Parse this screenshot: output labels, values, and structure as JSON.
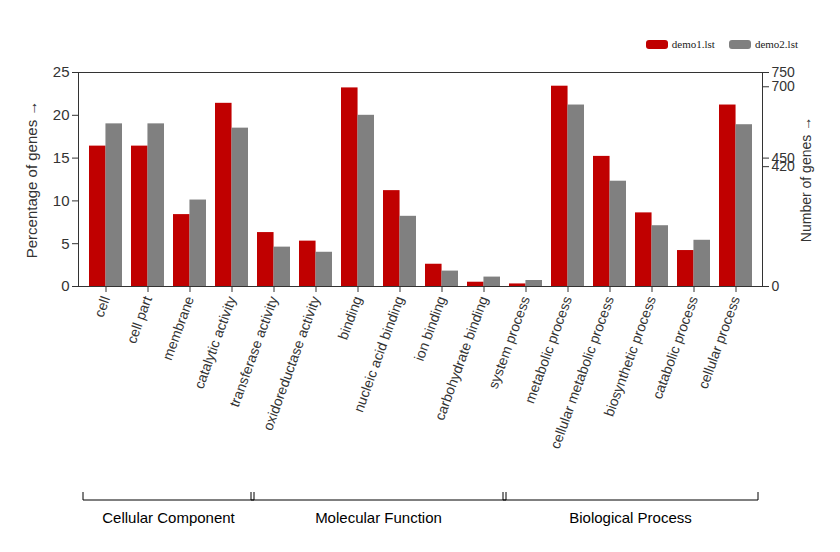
{
  "chart_data": {
    "type": "bar",
    "categories": [
      "cell",
      "cell part",
      "membrane",
      "catalytic activity",
      "transferase activity",
      "oxidoreductase activity",
      "binding",
      "nucleic acid binding",
      "ion binding",
      "carbohydrate binding",
      "system process",
      "metabolic process",
      "cellular metabolic process",
      "biosynthetic process",
      "catabolic process",
      "cellular process"
    ],
    "series": [
      {
        "name": "demo1.lst",
        "color": "#c00000",
        "values": [
          16.4,
          16.4,
          8.4,
          21.4,
          6.3,
          5.3,
          23.2,
          11.2,
          2.6,
          0.5,
          0.3,
          23.4,
          15.2,
          8.6,
          4.2,
          21.2
        ]
      },
      {
        "name": "demo2.lst",
        "color": "#808080",
        "values": [
          19.0,
          19.0,
          10.1,
          18.5,
          4.6,
          4.0,
          20.0,
          8.2,
          1.8,
          1.1,
          0.7,
          21.2,
          12.3,
          7.1,
          5.4,
          18.9
        ]
      }
    ],
    "ylabel": "Percentage of genes",
    "y2label": "Number of genes",
    "ylim": [
      0,
      25
    ],
    "yticks": [
      0,
      5,
      10,
      15,
      20,
      25
    ],
    "y2lim": [
      0,
      750
    ],
    "y2ticks": [
      0,
      420,
      450,
      700,
      750
    ],
    "groups": [
      {
        "label": "Cellular Component",
        "categories": [
          "cell",
          "cell part",
          "membrane",
          "catalytic activity"
        ]
      },
      {
        "label": "Molecular Function",
        "categories": [
          "transferase activity",
          "oxidoreductase activity",
          "binding",
          "nucleic acid binding",
          "ion binding",
          "carbohydrate binding"
        ]
      },
      {
        "label": "Biological Process",
        "categories": [
          "system process",
          "metabolic process",
          "cellular metabolic process",
          "biosynthetic process",
          "catabolic process",
          "cellular process"
        ]
      }
    ],
    "legend": "top-right"
  }
}
